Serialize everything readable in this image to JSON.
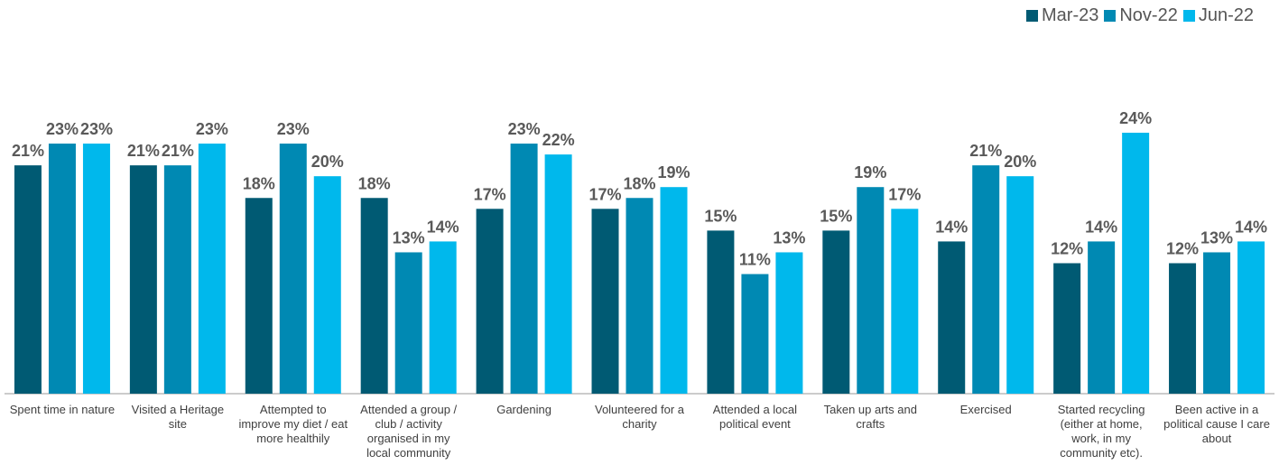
{
  "chart_data": {
    "type": "bar",
    "categories": [
      "Spent time in nature",
      "Visited a Heritage site",
      "Attempted to improve my diet / eat more healthily",
      "Attended a group / club / activity organised in my local community",
      "Gardening",
      "Volunteered for a charity",
      "Attended a local political event",
      "Taken up arts and crafts",
      "Exercised",
      "Started recycling (either at home, work, in my community etc).",
      "Been active in a political cause I care about"
    ],
    "series": [
      {
        "name": "Mar-23",
        "color": "#005a73",
        "values": [
          21,
          21,
          18,
          18,
          17,
          17,
          15,
          15,
          14,
          12,
          12
        ],
        "value_labels": [
          "21%",
          "21%",
          "18%",
          "18%",
          "17%",
          "17%",
          "15%",
          "15%",
          "14%",
          "12%",
          "12%"
        ]
      },
      {
        "name": "Nov-22",
        "color": "#0089b3",
        "values": [
          23,
          21,
          23,
          13,
          23,
          18,
          11,
          19,
          21,
          14,
          13
        ],
        "value_labels": [
          "23%",
          "21%",
          "23%",
          "13%",
          "23%",
          "18%",
          "11%",
          "19%",
          "21%",
          "14%",
          "13%"
        ]
      },
      {
        "name": "Jun-22",
        "color": "#00b8ec",
        "values": [
          23,
          23,
          20,
          14,
          22,
          19,
          13,
          17,
          20,
          24,
          14
        ],
        "value_labels": [
          "23%",
          "23%",
          "20%",
          "14%",
          "22%",
          "19%",
          "13%",
          "17%",
          "20%",
          "24%",
          "14%"
        ]
      }
    ],
    "legend": "top-right"
  }
}
